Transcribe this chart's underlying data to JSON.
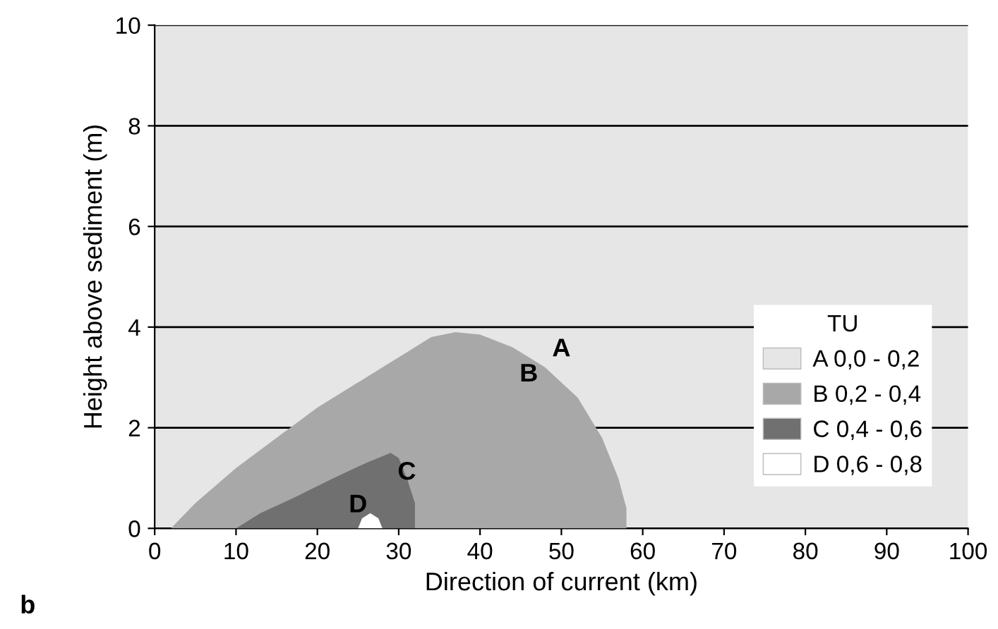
{
  "chart_data": {
    "type": "area",
    "xlabel": "Direction of current (km)",
    "ylabel": "Height above sediment (m)",
    "legend_title": "TU",
    "legend": "right",
    "xlim": [
      0,
      100
    ],
    "ylim": [
      0,
      10
    ],
    "xticks": [
      0,
      10,
      20,
      30,
      40,
      50,
      60,
      70,
      80,
      90,
      100
    ],
    "yticks": [
      0,
      2,
      4,
      6,
      8,
      10
    ],
    "grid": "y",
    "series": [
      {
        "name": "B 0,2 - 0,4",
        "color": "#a8a8a8",
        "x": [
          2,
          5,
          10,
          15,
          20,
          25,
          30,
          34,
          37,
          40,
          44,
          48,
          52,
          55,
          57,
          58,
          58
        ],
        "values": [
          0,
          0.5,
          1.2,
          1.8,
          2.4,
          2.9,
          3.4,
          3.8,
          3.9,
          3.85,
          3.6,
          3.2,
          2.6,
          1.8,
          1.0,
          0.4,
          0
        ]
      },
      {
        "name": "C 0,4 - 0,6",
        "color": "#707070",
        "x": [
          10,
          13,
          17,
          22,
          26,
          29,
          30,
          31,
          32,
          32
        ],
        "values": [
          0,
          0.3,
          0.6,
          1.0,
          1.3,
          1.5,
          1.4,
          1.0,
          0.5,
          0
        ]
      },
      {
        "name": "D 0,6 - 0,8",
        "color": "#ffffff",
        "x": [
          25,
          25.5,
          26.5,
          27.5,
          28
        ],
        "values": [
          0,
          0.2,
          0.3,
          0.2,
          0
        ]
      }
    ],
    "bands": [
      {
        "axis": "y",
        "from": 0,
        "to": 10,
        "label": "A 0,0 - 0,2",
        "color": "#e6e6e6"
      }
    ],
    "annotations": [
      "A",
      "B",
      "C",
      "D",
      "b"
    ]
  }
}
